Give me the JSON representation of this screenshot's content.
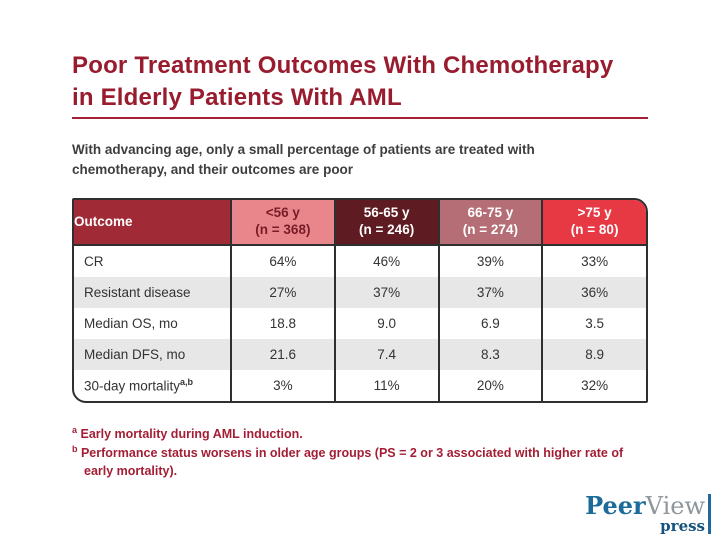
{
  "slide": {
    "title_line1": "Poor Treatment Outcomes With Chemotherapy",
    "title_line2": "in Elderly Patients With AML",
    "subtitle_line1": "With advancing age, only a small percentage of patients are treated with",
    "subtitle_line2": "chemotherapy, and their outcomes are poor"
  },
  "table": {
    "corner_header": "Outcome",
    "columns": [
      {
        "age": "<56 y",
        "n": "(n = 368)",
        "bg": "#E8868C",
        "fg": "#7A1C26"
      },
      {
        "age": "56-65 y",
        "n": "(n = 246)",
        "bg": "#5E1B22",
        "fg": "#FFFFFF"
      },
      {
        "age": "66-75 y",
        "n": "(n = 274)",
        "bg": "#B56E76",
        "fg": "#FFFFFF"
      },
      {
        "age": ">75 y",
        "n": "(n = 80)",
        "bg": "#E63944",
        "fg": "#FFFFFF"
      }
    ],
    "rows": [
      {
        "label": "CR",
        "sup": "",
        "values": [
          "64%",
          "46%",
          "39%",
          "33%"
        ]
      },
      {
        "label": "Resistant disease",
        "sup": "",
        "values": [
          "27%",
          "37%",
          "37%",
          "36%"
        ]
      },
      {
        "label": "Median OS, mo",
        "sup": "",
        "values": [
          "18.8",
          "9.0",
          "6.9",
          "3.5"
        ]
      },
      {
        "label": "Median DFS, mo",
        "sup": "",
        "values": [
          "21.6",
          "7.4",
          "8.3",
          "8.9"
        ]
      },
      {
        "label": "30-day mortality",
        "sup": "a,b",
        "values": [
          "3%",
          "11%",
          "20%",
          "32%"
        ]
      }
    ]
  },
  "footnotes": [
    {
      "sup": "a",
      "text": " Early mortality during AML induction."
    },
    {
      "sup": "b",
      "text": " Performance status worsens in older age groups (PS = 2 or 3 associated with higher rate of early mortality)."
    }
  ],
  "logo": {
    "peer": "Peer",
    "view": "View",
    "press": "press"
  },
  "colors": {
    "title_red": "#981C2E",
    "rule_red": "#A32035",
    "subtitle_gray": "#3E3E3E",
    "outcome_header_bg": "#A02A36",
    "table_border": "#2F2F2F",
    "alt_row_bg": "#E7E7E7",
    "footnote_red": "#A31E35",
    "logo_blue": "#1C6B9B",
    "logo_gray": "#8F969C",
    "press_blue": "#15527D"
  }
}
